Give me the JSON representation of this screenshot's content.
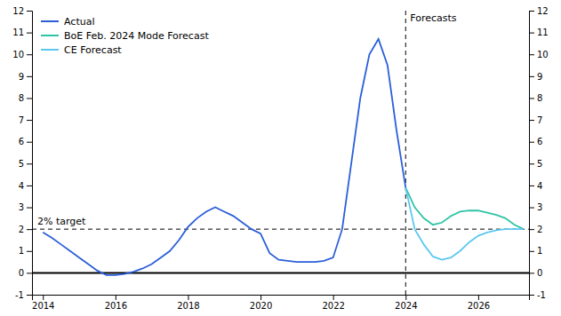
{
  "chart_data": {
    "type": "line",
    "xlim": [
      2013.7,
      2027.4
    ],
    "xticks": [
      2014,
      2016,
      2018,
      2020,
      2022,
      2024,
      2026
    ],
    "ylim": [
      -1,
      12
    ],
    "yticks": [
      -1,
      0,
      1,
      2,
      3,
      4,
      5,
      6,
      7,
      8,
      9,
      10,
      11,
      12
    ],
    "y2lim": [
      -1,
      12
    ],
    "y2ticks": [
      -1,
      0,
      1,
      2,
      3,
      4,
      5,
      6,
      7,
      8,
      9,
      10,
      11,
      12
    ],
    "grid": false,
    "legend": "upper left",
    "series": [
      {
        "name": "Actual",
        "color": "#2b5fd9",
        "x": [
          2014.0,
          2014.25,
          2014.5,
          2014.75,
          2015.0,
          2015.25,
          2015.5,
          2015.75,
          2016.0,
          2016.25,
          2016.5,
          2016.75,
          2017.0,
          2017.25,
          2017.5,
          2017.75,
          2018.0,
          2018.25,
          2018.5,
          2018.75,
          2019.0,
          2019.25,
          2019.5,
          2019.75,
          2020.0,
          2020.25,
          2020.5,
          2020.75,
          2021.0,
          2021.25,
          2021.5,
          2021.75,
          2022.0,
          2022.25,
          2022.5,
          2022.75,
          2023.0,
          2023.25,
          2023.5,
          2023.75,
          2024.0
        ],
        "values": [
          1.85,
          1.6,
          1.3,
          1.0,
          0.7,
          0.4,
          0.1,
          -0.1,
          -0.1,
          -0.05,
          0.05,
          0.2,
          0.4,
          0.7,
          1.0,
          1.5,
          2.1,
          2.5,
          2.8,
          3.0,
          2.8,
          2.6,
          2.3,
          2.0,
          1.8,
          0.9,
          0.6,
          0.55,
          0.5,
          0.5,
          0.5,
          0.55,
          0.7,
          2.0,
          5.0,
          8.0,
          10.0,
          10.7,
          9.5,
          6.5,
          3.9
        ]
      },
      {
        "name": "BoE Feb. 2024 Mode Forecast",
        "color": "#2ec4a5",
        "x": [
          2024.0,
          2024.25,
          2024.5,
          2024.75,
          2025.0,
          2025.25,
          2025.5,
          2025.75,
          2026.0,
          2026.25,
          2026.5,
          2026.75,
          2027.0,
          2027.25
        ],
        "values": [
          3.9,
          3.0,
          2.5,
          2.2,
          2.3,
          2.6,
          2.8,
          2.85,
          2.85,
          2.75,
          2.65,
          2.5,
          2.2,
          2.0
        ]
      },
      {
        "name": "CE Forecast",
        "color": "#5bc8f0",
        "x": [
          2024.0,
          2024.25,
          2024.5,
          2024.75,
          2025.0,
          2025.25,
          2025.5,
          2025.75,
          2026.0,
          2026.25,
          2026.5,
          2026.75,
          2027.0,
          2027.25
        ],
        "values": [
          3.9,
          2.0,
          1.3,
          0.75,
          0.6,
          0.7,
          1.0,
          1.4,
          1.7,
          1.85,
          1.95,
          2.0,
          2.0,
          2.0
        ]
      }
    ],
    "annotations": [
      {
        "text": "2% target",
        "y": 2.0,
        "line_style": "dashed"
      },
      {
        "text": "Forecasts",
        "x": 2024.0,
        "line_style": "dashed"
      }
    ]
  }
}
